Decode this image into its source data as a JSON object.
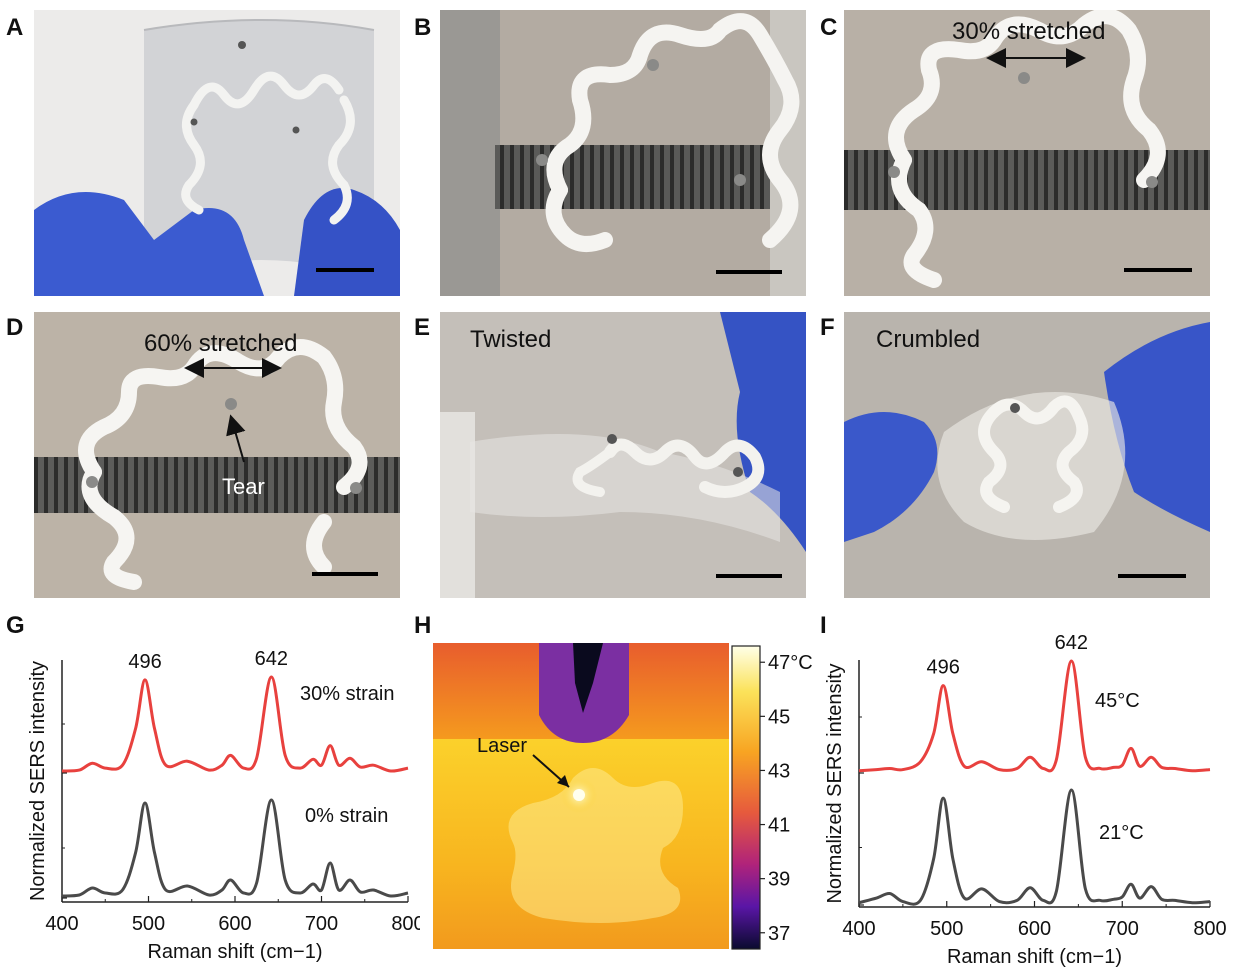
{
  "panel_labels": {
    "A": "A",
    "B": "B",
    "C": "C",
    "D": "D",
    "E": "E",
    "F": "F",
    "G": "G",
    "H": "H",
    "I": "I"
  },
  "photos": {
    "C_annotation": "30% stretched",
    "D_annotation": "60% stretched",
    "D_tear": "Tear",
    "E_annotation": "Twisted",
    "F_annotation": "Crumbled"
  },
  "thermal": {
    "laser_label": "Laser",
    "colorbar_ticks": [
      "47°C",
      "45",
      "43",
      "41",
      "39",
      "37"
    ],
    "colorbar_values": [
      47,
      45,
      43,
      41,
      39,
      37
    ]
  },
  "chart_data": [
    {
      "type": "line",
      "panel": "G",
      "xlabel": "Raman shift (cm−1)",
      "ylabel": "Normalized  SERS intensity",
      "xlim": [
        400,
        800
      ],
      "xticks": [
        400,
        500,
        600,
        700,
        800
      ],
      "peak_labels": [
        {
          "x": 496,
          "text": "496"
        },
        {
          "x": 642,
          "text": "642"
        }
      ],
      "series": [
        {
          "name": "30% strain",
          "color": "#e8413e",
          "x": [
            400,
            420,
            435,
            450,
            470,
            485,
            496,
            507,
            520,
            545,
            570,
            585,
            595,
            610,
            625,
            642,
            658,
            675,
            690,
            700,
            710,
            720,
            733,
            745,
            760,
            780,
            800
          ],
          "y": [
            0.02,
            0.03,
            0.1,
            0.05,
            0.08,
            0.45,
            0.95,
            0.45,
            0.08,
            0.12,
            0.03,
            0.08,
            0.18,
            0.05,
            0.15,
            0.98,
            0.18,
            0.05,
            0.14,
            0.08,
            0.28,
            0.08,
            0.15,
            0.06,
            0.08,
            0.02,
            0.05
          ]
        },
        {
          "name": "0% strain",
          "color": "#4a4a4a",
          "x": [
            400,
            420,
            435,
            450,
            470,
            485,
            496,
            507,
            520,
            545,
            570,
            585,
            595,
            610,
            625,
            642,
            658,
            675,
            690,
            700,
            710,
            720,
            733,
            745,
            760,
            780,
            800
          ],
          "y": [
            0.02,
            0.03,
            0.1,
            0.05,
            0.08,
            0.45,
            0.95,
            0.45,
            0.08,
            0.12,
            0.03,
            0.08,
            0.18,
            0.05,
            0.15,
            0.98,
            0.18,
            0.05,
            0.14,
            0.08,
            0.35,
            0.08,
            0.18,
            0.06,
            0.08,
            0.02,
            0.05
          ]
        }
      ]
    },
    {
      "type": "line",
      "panel": "I",
      "xlabel": "Raman shift (cm−1)",
      "ylabel": "Normalized  SERS intensity",
      "xlim": [
        400,
        800
      ],
      "xticks": [
        400,
        500,
        600,
        700,
        800
      ],
      "peak_labels": [
        {
          "x": 496,
          "text": "496"
        },
        {
          "x": 642,
          "text": "642"
        }
      ],
      "series": [
        {
          "name": "45°C",
          "color": "#e8413e",
          "x": [
            400,
            420,
            435,
            450,
            470,
            485,
            496,
            507,
            520,
            540,
            560,
            580,
            595,
            610,
            625,
            642,
            658,
            675,
            690,
            700,
            710,
            720,
            733,
            745,
            760,
            780,
            800
          ],
          "y": [
            0.02,
            0.03,
            0.04,
            0.03,
            0.1,
            0.35,
            0.78,
            0.35,
            0.06,
            0.1,
            0.03,
            0.04,
            0.14,
            0.04,
            0.12,
            1.0,
            0.14,
            0.04,
            0.05,
            0.07,
            0.22,
            0.06,
            0.14,
            0.05,
            0.04,
            0.02,
            0.03
          ]
        },
        {
          "name": "21°C",
          "color": "#4a4a4a",
          "x": [
            400,
            420,
            435,
            450,
            470,
            485,
            496,
            507,
            520,
            540,
            560,
            580,
            595,
            610,
            625,
            642,
            658,
            675,
            690,
            700,
            710,
            720,
            733,
            745,
            760,
            780,
            800
          ],
          "y": [
            0.02,
            0.06,
            0.1,
            0.03,
            0.04,
            0.4,
            0.93,
            0.4,
            0.06,
            0.14,
            0.03,
            0.04,
            0.15,
            0.04,
            0.12,
            1.0,
            0.14,
            0.04,
            0.05,
            0.07,
            0.18,
            0.06,
            0.16,
            0.05,
            0.04,
            0.02,
            0.03
          ]
        }
      ]
    }
  ]
}
